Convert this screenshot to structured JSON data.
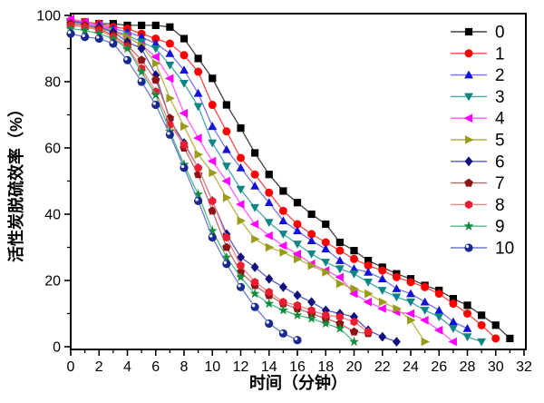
{
  "figure": {
    "background": "#ffffff",
    "frame_color": "#000000"
  },
  "chart_data": {
    "type": "line",
    "title": "",
    "xlabel": "时间（分钟）",
    "ylabel": "活性炭脱硫效率（%）",
    "xlim": [
      0,
      32.2
    ],
    "ylim": [
      0,
      100
    ],
    "x_major_ticks": [
      0,
      2,
      4,
      6,
      8,
      10,
      12,
      14,
      16,
      18,
      20,
      22,
      24,
      26,
      28,
      30,
      32
    ],
    "x_minor_ticks": [
      1,
      3,
      5,
      7,
      9,
      11,
      13,
      15,
      17,
      19,
      21,
      23,
      25,
      27,
      29,
      31
    ],
    "y_major_ticks": [
      0,
      20,
      40,
      60,
      80,
      100
    ],
    "y_minor_ticks": [
      10,
      30,
      50,
      70,
      90
    ],
    "grid": false,
    "legend_position": "top-right-inside",
    "legend_labels": [
      "0",
      "1",
      "2",
      "3",
      "4",
      "5",
      "6",
      "7",
      "8",
      "9",
      "10"
    ],
    "series": [
      {
        "name": "0",
        "marker": "square",
        "color": "#000000",
        "line_color": "#404040",
        "x_start": 0,
        "x_step": 1,
        "values": [
          98,
          98,
          97.5,
          97.5,
          97,
          97,
          97,
          96.5,
          93,
          87,
          81,
          73,
          66,
          58.5,
          52,
          47,
          43.5,
          40,
          37,
          31.5,
          29,
          26,
          24,
          22,
          20.5,
          18.5,
          17,
          14.5,
          12.5,
          9.5,
          6.5,
          2.5
        ]
      },
      {
        "name": "1",
        "marker": "circle",
        "color": "#ff0000",
        "line_color": "#ff4646",
        "x_start": 0,
        "x_step": 1,
        "values": [
          98.5,
          98,
          97.5,
          96.5,
          96,
          94.5,
          93,
          91.5,
          88,
          83,
          73,
          65,
          57,
          52,
          46.5,
          41,
          37,
          34,
          31.5,
          29,
          26.5,
          24.5,
          23,
          21,
          19.5,
          18,
          16,
          13,
          10,
          6.5,
          2.5
        ]
      },
      {
        "name": "2",
        "marker": "triangle-up",
        "color": "#1212d6",
        "line_color": "#7474e8",
        "x_start": 0,
        "x_step": 1,
        "values": [
          98,
          97.5,
          97,
          96,
          95,
          93.5,
          91.5,
          88.5,
          83.5,
          76.5,
          66.5,
          59.5,
          54,
          48.5,
          43.5,
          38,
          35,
          32,
          29.5,
          26,
          23.5,
          22.5,
          20.5,
          17.5,
          16,
          13.5,
          11,
          7.5,
          5.5
        ]
      },
      {
        "name": "3",
        "marker": "triangle-down",
        "color": "#0e8585",
        "line_color": "#44a8a8",
        "x_start": 0,
        "x_step": 1,
        "values": [
          97.5,
          97,
          96.5,
          95.5,
          94,
          92,
          90,
          85,
          79.5,
          72.5,
          61.5,
          54.5,
          47.5,
          42,
          37.5,
          34,
          31,
          28,
          25.5,
          23.5,
          22,
          19.5,
          17,
          15,
          13.5,
          11,
          9,
          5.5,
          3,
          1.5
        ]
      },
      {
        "name": "4",
        "marker": "triangle-left",
        "color": "#ff00ff",
        "line_color": "#ff5cff",
        "x_start": 0,
        "x_step": 1,
        "values": [
          99,
          98,
          97,
          95.5,
          93.5,
          91,
          87.5,
          81,
          70.5,
          63,
          56,
          50,
          43,
          37,
          33.5,
          30.5,
          28,
          25,
          23,
          21,
          16,
          13.5,
          11.5,
          10.5,
          10,
          8,
          5,
          1.5
        ]
      },
      {
        "name": "5",
        "marker": "triangle-right",
        "color": "#9a9a1c",
        "line_color": "#b8b34a",
        "x_start": 0,
        "x_step": 1,
        "values": [
          97,
          96.5,
          96,
          95,
          93.5,
          91,
          85.5,
          75,
          66.5,
          58,
          52.5,
          45,
          38,
          32.5,
          30,
          28.5,
          26.5,
          24.5,
          22.5,
          19,
          17.5,
          16,
          13.5,
          11.5,
          8,
          1.5
        ]
      },
      {
        "name": "6",
        "marker": "diamond",
        "color": "#10107e",
        "line_color": "#5a5ac2",
        "x_start": 0,
        "x_step": 1,
        "values": [
          97.5,
          97,
          96.5,
          95,
          92,
          90,
          82,
          68.5,
          61.5,
          54,
          44,
          34,
          27,
          24,
          20.5,
          18,
          15.5,
          13.5,
          11,
          10,
          9,
          5,
          3,
          1.5
        ]
      },
      {
        "name": "7",
        "marker": "pentagon",
        "color": "#8b1414",
        "line_color": "#c26a6a",
        "x_start": 0,
        "x_step": 1,
        "values": [
          97.5,
          97,
          96,
          94,
          91,
          86.5,
          80.5,
          69,
          60,
          52,
          41,
          30,
          22.5,
          18.5,
          15.5,
          13,
          11.5,
          10,
          8.5,
          7,
          4.5,
          4
        ]
      },
      {
        "name": "8",
        "marker": "hexagon",
        "color": "#ee1c30",
        "line_color": "#f28484",
        "x_start": 0,
        "x_step": 1,
        "values": [
          97,
          96.5,
          95.5,
          93.5,
          90.5,
          84,
          77,
          67,
          61,
          54,
          44,
          33,
          24.5,
          19.5,
          16.5,
          13.5,
          12.5,
          11,
          9.5,
          9,
          7.5,
          4.5
        ]
      },
      {
        "name": "9",
        "marker": "star",
        "color": "#0f8c3c",
        "line_color": "#54b886",
        "x_start": 0,
        "x_step": 1,
        "values": [
          96,
          95.5,
          94.5,
          93,
          90,
          83,
          76,
          65,
          55,
          46,
          35,
          27,
          21,
          16,
          13,
          11,
          9.5,
          8.5,
          7,
          5.5,
          1.5
        ]
      },
      {
        "name": "10",
        "marker": "sphere",
        "color": "#1a2a8c",
        "line_color": "#6c7ccb",
        "x_start": 0,
        "x_step": 1,
        "values": [
          94.5,
          93.5,
          93,
          91.5,
          86.5,
          80,
          73,
          64,
          54,
          44,
          33,
          25,
          18,
          12,
          7,
          4,
          2
        ]
      }
    ]
  }
}
